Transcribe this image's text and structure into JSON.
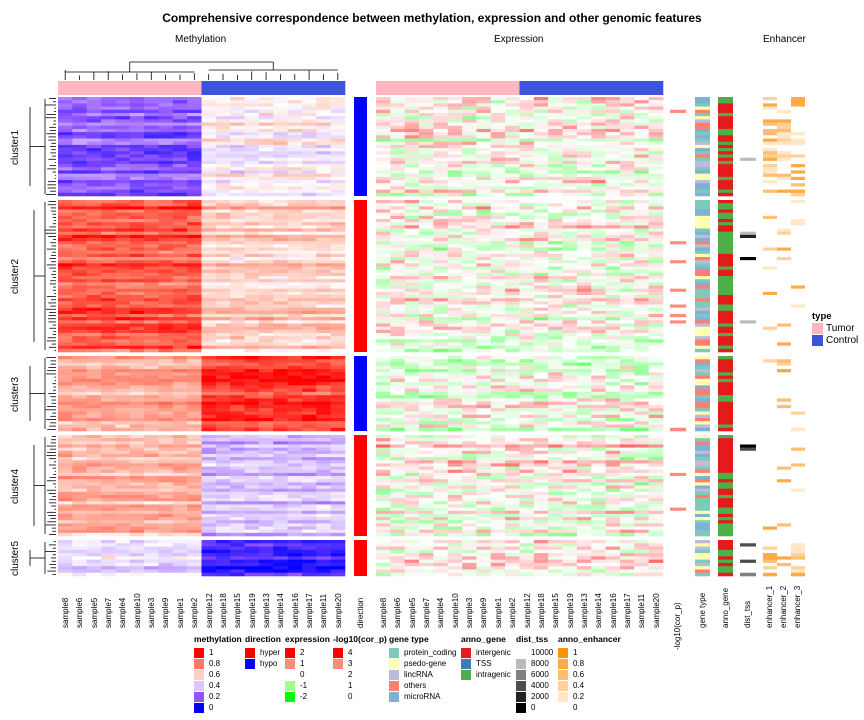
{
  "chart_data": {
    "type": "heatmap",
    "title": "Comprehensive correspondence between methylation, expression and other genomic features",
    "panels": {
      "methylation": "Methylation",
      "expression": "Expression",
      "enhancer": "Enhancer"
    },
    "samples": [
      "sample8",
      "sample6",
      "sample5",
      "sample7",
      "sample4",
      "sample10",
      "sample3",
      "sample9",
      "sample1",
      "sample2",
      "sample12",
      "sample18",
      "sample15",
      "sample19",
      "sample13",
      "sample14",
      "sample16",
      "sample17",
      "sample11",
      "sample20"
    ],
    "sample_type": [
      "Tumor",
      "Tumor",
      "Tumor",
      "Tumor",
      "Tumor",
      "Tumor",
      "Tumor",
      "Tumor",
      "Tumor",
      "Tumor",
      "Control",
      "Control",
      "Control",
      "Control",
      "Control",
      "Control",
      "Control",
      "Control",
      "Control",
      "Control"
    ],
    "clusters": [
      {
        "name": "cluster1",
        "direction": "hypo",
        "methylation_tumor": 0.2,
        "methylation_control": 0.5
      },
      {
        "name": "cluster2",
        "direction": "hyper",
        "methylation_tumor": 0.85,
        "methylation_control": 0.6
      },
      {
        "name": "cluster3",
        "direction": "hypo",
        "methylation_tumor": 0.7,
        "methylation_control": 0.92
      },
      {
        "name": "cluster4",
        "direction": "hyper",
        "methylation_tumor": 0.68,
        "methylation_control": 0.4
      },
      {
        "name": "cluster5",
        "direction": "hyper",
        "methylation_tumor": 0.45,
        "methylation_control": 0.1
      }
    ],
    "annotation_columns": [
      "direction",
      "-log10(cor_p)",
      "gene type",
      "anno_gene",
      "dist_tss",
      "enhancer_1",
      "enhancer_2",
      "enhancer_3"
    ],
    "type_legend": {
      "title": "type",
      "items": [
        {
          "label": "Tumor",
          "color": "#FFB6C1"
        },
        {
          "label": "Control",
          "color": "#3B54DB"
        }
      ]
    },
    "legends": [
      {
        "title": "methylation",
        "items": [
          {
            "label": "1",
            "color": "#FF0000"
          },
          {
            "label": "0.8",
            "color": "#FF7A63"
          },
          {
            "label": "0.6",
            "color": "#FFD0C4"
          },
          {
            "label": "0.4",
            "color": "#DCC7FF"
          },
          {
            "label": "0.2",
            "color": "#9154FF"
          },
          {
            "label": "0",
            "color": "#0000FF"
          }
        ]
      },
      {
        "title": "direction",
        "items": [
          {
            "label": "hyper",
            "color": "#FF0000"
          },
          {
            "label": "hypo",
            "color": "#0000FF"
          }
        ]
      },
      {
        "title": "expression",
        "items": [
          {
            "label": "2",
            "color": "#FF0000"
          },
          {
            "label": "1",
            "color": "#FF8C78"
          },
          {
            "label": "0",
            "color": "#FFFFFF"
          },
          {
            "label": "-1",
            "color": "#A6FF8A"
          },
          {
            "label": "-2",
            "color": "#00FF00"
          }
        ]
      },
      {
        "title": "-log10(cor_p)",
        "items": [
          {
            "label": "4",
            "color": "#FF0000"
          },
          {
            "label": "3",
            "color": "#FF8C78"
          },
          {
            "label": "2",
            "color": "#FFFFFF"
          },
          {
            "label": "1",
            "color": "#FFFFFF"
          },
          {
            "label": "0",
            "color": "#FFFFFF"
          }
        ]
      },
      {
        "title": "gene type",
        "items": [
          {
            "label": "protein_coding",
            "color": "#7FC9BB"
          },
          {
            "label": "psedo-gene",
            "color": "#FFFFB3"
          },
          {
            "label": "lincRNA",
            "color": "#BEBADA"
          },
          {
            "label": "others",
            "color": "#FB8072"
          },
          {
            "label": "microRNA",
            "color": "#80B1D3"
          }
        ]
      },
      {
        "title": "anno_gene",
        "items": [
          {
            "label": "intergenic",
            "color": "#E41A1C"
          },
          {
            "label": "TSS",
            "color": "#377EB8"
          },
          {
            "label": "intragenic",
            "color": "#4DAF4A"
          }
        ]
      },
      {
        "title": "dist_tss",
        "items": [
          {
            "label": "10000",
            "color": "#FFFFFF"
          },
          {
            "label": "8000",
            "color": "#BBBBBB"
          },
          {
            "label": "6000",
            "color": "#808080"
          },
          {
            "label": "4000",
            "color": "#4D4D4D"
          },
          {
            "label": "2000",
            "color": "#222222"
          },
          {
            "label": "0",
            "color": "#000000"
          }
        ]
      },
      {
        "title": "anno_enhancer",
        "items": [
          {
            "label": "1",
            "color": "#FF9400"
          },
          {
            "label": "0.8",
            "color": "#FFAA45"
          },
          {
            "label": "0.6",
            "color": "#FFBE70"
          },
          {
            "label": "0.4",
            "color": "#FFD29A"
          },
          {
            "label": "0.2",
            "color": "#FFE7C8"
          },
          {
            "label": "0",
            "color": "#FFFFFF"
          }
        ]
      }
    ]
  }
}
